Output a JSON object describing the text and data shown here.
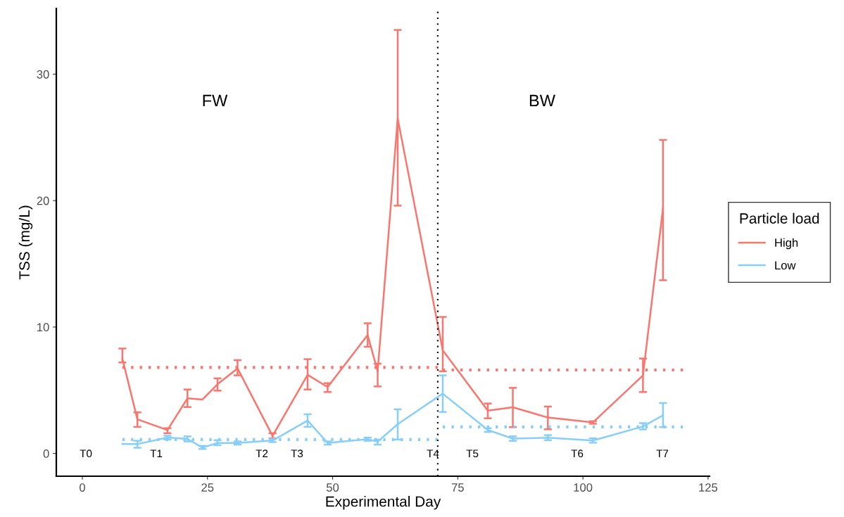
{
  "chart_data": {
    "type": "line",
    "xlabel": "Experimental Day",
    "ylabel": "TSS (mg/L)",
    "legend_title": "Particle load",
    "legend": "right",
    "grid": false,
    "marker": "none",
    "xlim": [
      -5.2,
      125.3
    ],
    "xticks": [
      0,
      25,
      50,
      75,
      100,
      125
    ],
    "ylim": [
      -1.8,
      35.2
    ],
    "yticks": [
      0,
      10,
      20,
      30
    ],
    "series": [
      {
        "name": "High",
        "color": "#f8766d",
        "x": [
          8,
          11,
          17,
          21,
          24,
          27,
          31,
          38,
          45,
          49,
          57,
          59,
          63,
          72,
          81,
          86,
          93,
          102,
          112,
          116
        ],
        "values": [
          7.5,
          2.7,
          1.85,
          4.36,
          4.27,
          5.47,
          6.73,
          1.39,
          6.22,
          5.25,
          9.37,
          6.5,
          26.5,
          8.16,
          3.39,
          3.65,
          2.84,
          2.45,
          6.18,
          19.4
        ],
        "errors": [
          [
            7.2,
            8.3
          ],
          [
            2.1,
            3.25
          ],
          [
            1.6,
            2.0
          ],
          [
            3.67,
            5.06
          ],
          null,
          [
            4.97,
            5.94
          ],
          [
            6.18,
            7.38
          ],
          [
            1.2,
            1.6
          ],
          [
            5.06,
            7.46
          ],
          [
            4.86,
            5.56
          ],
          [
            8.44,
            10.3
          ],
          [
            5.3,
            7.1
          ],
          [
            19.6,
            33.5
          ],
          [
            6.5,
            10.8
          ],
          [
            2.78,
            3.95
          ],
          [
            2.08,
            5.19
          ],
          [
            1.91,
            3.71
          ],
          [
            2.35,
            2.55
          ],
          [
            4.86,
            7.51
          ],
          [
            13.7,
            24.8
          ]
        ]
      },
      {
        "name": "Low",
        "color": "#87cefa",
        "x": [
          8,
          11,
          17,
          21,
          24,
          27,
          31,
          38,
          45,
          49,
          57,
          59,
          63,
          72,
          81,
          86,
          93,
          102,
          112,
          116
        ],
        "values": [
          0.74,
          0.74,
          1.26,
          1.15,
          0.46,
          0.83,
          0.83,
          1.02,
          2.6,
          0.83,
          1.13,
          0.93,
          2.32,
          4.73,
          1.86,
          1.17,
          1.24,
          1.02,
          2.13,
          3.02
        ],
        "errors": [
          null,
          [
            0.45,
            1.0
          ],
          [
            1.1,
            1.4
          ],
          [
            0.95,
            1.35
          ],
          [
            0.35,
            0.6
          ],
          [
            0.65,
            1.05
          ],
          [
            0.7,
            0.95
          ],
          [
            0.9,
            1.15
          ],
          [
            2.1,
            3.1
          ],
          [
            0.7,
            0.95
          ],
          [
            1.0,
            1.25
          ],
          [
            0.7,
            1.1
          ],
          [
            1.1,
            3.49
          ],
          [
            3.28,
            6.18
          ],
          [
            1.7,
            2.0
          ],
          [
            1.0,
            1.35
          ],
          [
            1.05,
            1.45
          ],
          [
            0.85,
            1.2
          ],
          [
            1.9,
            2.4
          ],
          [
            2.08,
            3.99
          ]
        ]
      },
      {
        "color": "#f8766d",
        "line_style": "dotted",
        "x": [
          8,
          71
        ],
        "values": [
          6.8,
          6.8
        ]
      },
      {
        "color": "#f8766d",
        "line_style": "dotted",
        "x": [
          72,
          120
        ],
        "values": [
          6.6,
          6.6
        ]
      },
      {
        "color": "#87cefa",
        "line_style": "dotted",
        "x": [
          8,
          71
        ],
        "values": [
          1.1,
          1.1
        ]
      },
      {
        "color": "#87cefa",
        "line_style": "dotted",
        "x": [
          72,
          120
        ],
        "values": [
          2.1,
          2.1
        ]
      }
    ],
    "ref_lines": [
      {
        "axis": "x",
        "value": 71,
        "color": "#000000",
        "line_style": "dotted"
      }
    ],
    "annotations": [
      "FW",
      "BW",
      "T0",
      "T1",
      "T2",
      "T3",
      "T4",
      "T5",
      "T6",
      "T7"
    ]
  }
}
